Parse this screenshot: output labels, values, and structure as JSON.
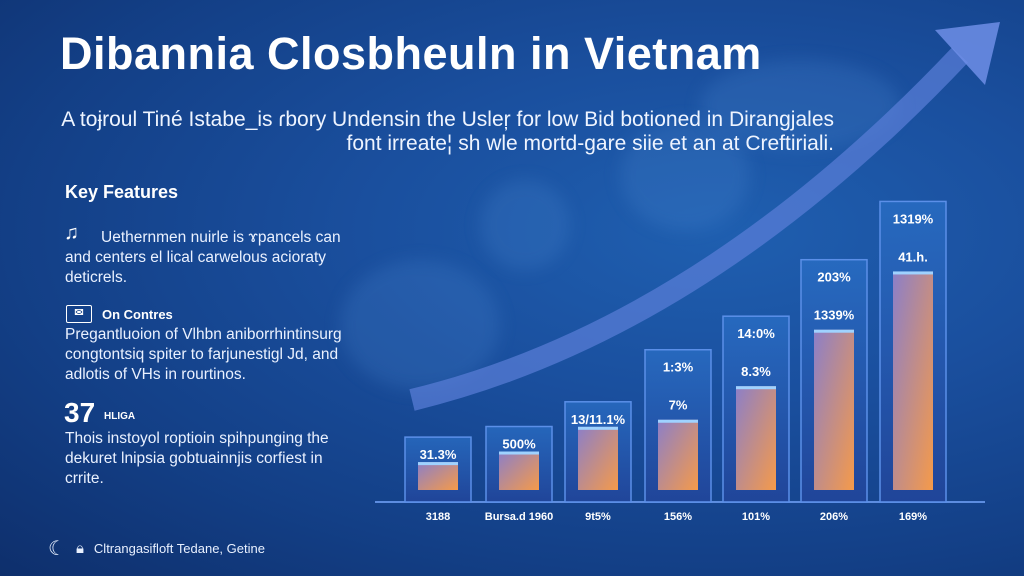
{
  "title": "Dibannia Closbheuln in Vietnam",
  "subtitle": [
    "A toɉroul Tiné Istabe_is ɾbory Undensin the Usleŗ for low Bid botioned in Dirangjales",
    "font irreate¦ sh wle mortd-gare siie et an at Creftiriali."
  ],
  "features": {
    "heading": "Key Features",
    "items": [
      {
        "icon": "music-note-icon",
        "title": "",
        "text": "Uethernmen nuirle is ɤpancels can and centers el lical carwelous aciorаty deticrels."
      },
      {
        "icon": "envelope-icon",
        "title": "On Contres",
        "text": "Pregantluoion of Vlhbn aniborrhintinsurg congtontsiq spiter to farjunestigl Jd, and adlotis of VHs in rourtinos."
      },
      {
        "icon": "",
        "title": "37",
        "title_suffix": "HLIGA",
        "text": "Thois instoyol roptioin spihpunging the dekuret lnipsia gobtuainnjis corfiest in crrite."
      }
    ]
  },
  "footer": {
    "logo_icon": "wave-logo-icon",
    "lock_icon": "lock-icon",
    "text": "Cltrangasifloft Tedane, Getine"
  },
  "colors": {
    "bar_gradient_start": "#8c7fc8",
    "bar_gradient_end": "#f59a4a",
    "box": "#2a67c0",
    "arrow": "#5b7fd8"
  },
  "chart_data": {
    "type": "bar",
    "categories": [
      "3188",
      "Bursa.d 1960",
      "9t5%",
      "156%",
      "101%",
      "206%",
      "169%"
    ],
    "values": [
      9,
      15,
      29,
      33,
      52,
      84,
      117
    ],
    "top_labels": [
      "31.3%",
      "500%",
      "13/11.1%",
      "1:3%",
      "14:0%",
      "203%",
      "1319%"
    ],
    "bar_labels": [
      "",
      "",
      "",
      "7%",
      "8.3%",
      "1339%",
      "41.h."
    ],
    "trend_arrow": true
  }
}
